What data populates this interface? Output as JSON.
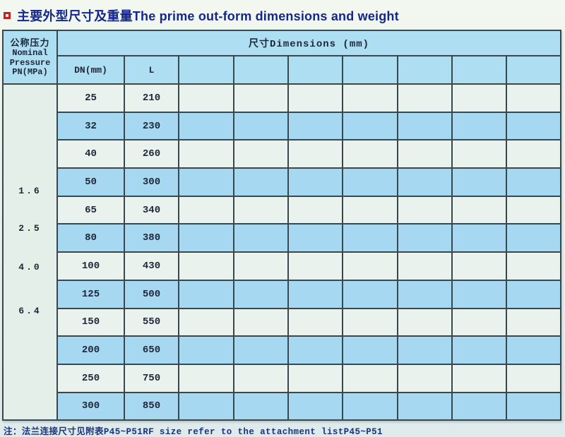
{
  "page": {
    "title": "主要外型尺寸及重量The prime out-form dimensions and weight",
    "note": "注：法兰连接尺寸见附表P45~P51RF size refer to the attachment listP45~P51"
  },
  "table": {
    "pn_header": {
      "zh": "公称压力",
      "en_lines": [
        "Nominal",
        "Pressure",
        "PN(MPa)"
      ]
    },
    "dimensions_header": "尺寸Dimensions (mm)",
    "sub_headers": [
      "DN(mm)",
      "L",
      "",
      "",
      "",
      "",
      "",
      "",
      ""
    ],
    "pn_values": [
      "1.6",
      "2.5",
      "4.0",
      "6.4"
    ],
    "rows": [
      {
        "dn": "25",
        "l": "210"
      },
      {
        "dn": "32",
        "l": "230"
      },
      {
        "dn": "40",
        "l": "260"
      },
      {
        "dn": "50",
        "l": "300"
      },
      {
        "dn": "65",
        "l": "340"
      },
      {
        "dn": "80",
        "l": "380"
      },
      {
        "dn": "100",
        "l": "430"
      },
      {
        "dn": "125",
        "l": "500"
      },
      {
        "dn": "150",
        "l": "550"
      },
      {
        "dn": "200",
        "l": "650"
      },
      {
        "dn": "250",
        "l": "750"
      },
      {
        "dn": "300",
        "l": "850"
      }
    ],
    "empty_columns": 7
  },
  "colors": {
    "title_text": "#15278e",
    "bullet_red": "#c9201d",
    "header_blue": "#addef2",
    "row_blue": "#a6d8f2",
    "row_light": "#e9f2ec",
    "pn_cell_bg": "#e5efe9",
    "grid_line": "#3a474b",
    "cell_text": "#1e2638",
    "note_text": "#1b3380"
  }
}
